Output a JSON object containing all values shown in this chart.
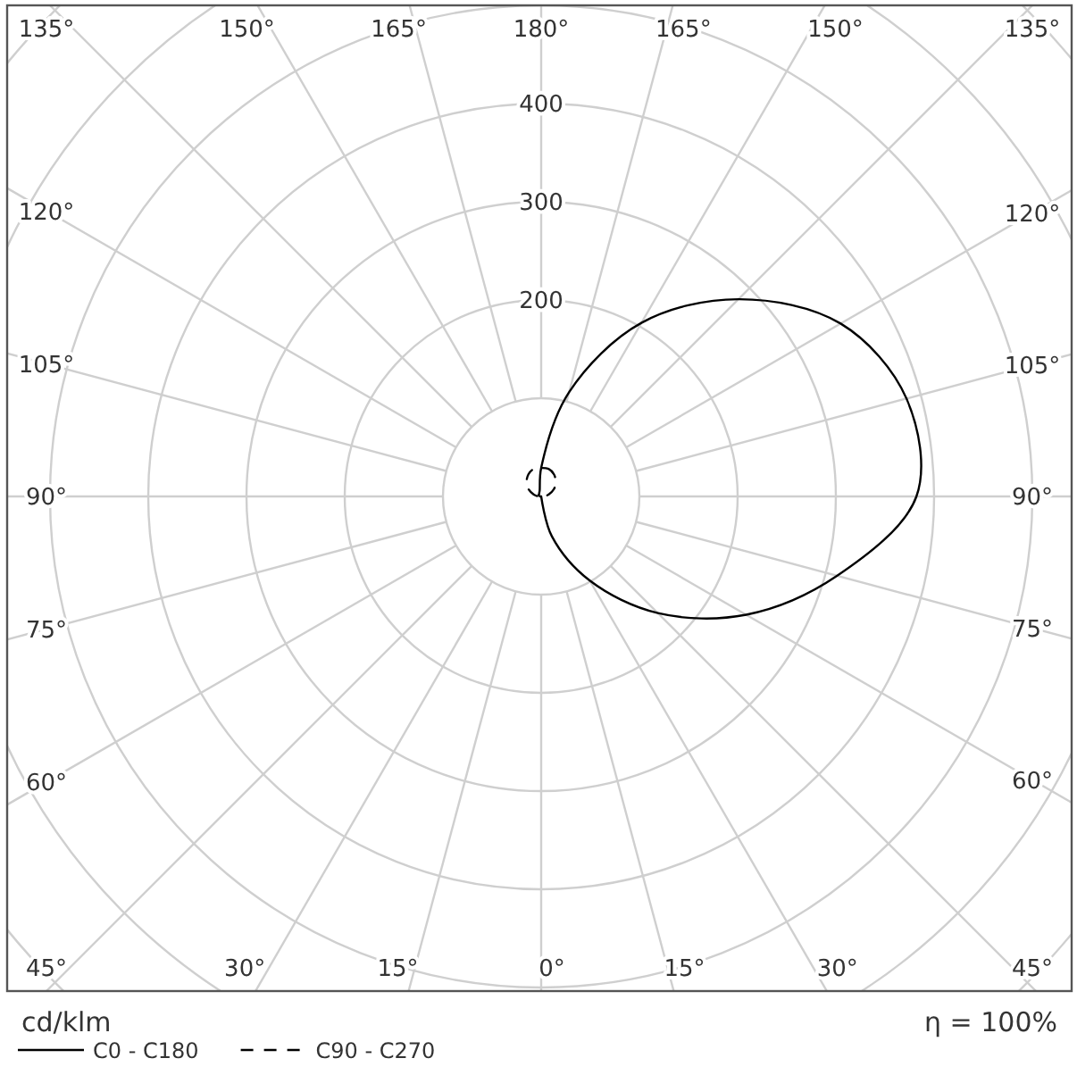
{
  "chart_data": {
    "type": "radar",
    "categories": [
      "180°",
      "165°",
      "150°",
      "135°",
      "120°",
      "105°",
      "90°",
      "75°",
      "60°",
      "45°",
      "30°",
      "15°",
      "0°",
      "15°",
      "30°",
      "45°",
      "60°",
      "75°",
      "90°",
      "105°",
      "120°",
      "135°",
      "150°",
      "165°"
    ],
    "series": [
      {
        "name": "C0 - C180",
        "color": "#000000",
        "line_style": "solid",
        "values": [
          29,
          110,
          204,
          284,
          352,
          385,
          382,
          312,
          241,
          168,
          99,
          42,
          0,
          0,
          0,
          0,
          0,
          0,
          1,
          2,
          3,
          3,
          4,
          6
        ]
      },
      {
        "name": "C90 - C270",
        "color": "#000000",
        "line_style": "dashed",
        "values": [
          29,
          29,
          26,
          21,
          15,
          8,
          3,
          1,
          0,
          0,
          0,
          0,
          0,
          0,
          0,
          0,
          0,
          1,
          3,
          8,
          15,
          21,
          26,
          29
        ]
      }
    ],
    "ylim": [
      0,
      700
    ],
    "yticks": [
      200,
      300,
      400
    ],
    "ylabel": "cd/klm",
    "annotations": [
      "η = 100%"
    ],
    "grid": true,
    "legend": "bottom left"
  }
}
